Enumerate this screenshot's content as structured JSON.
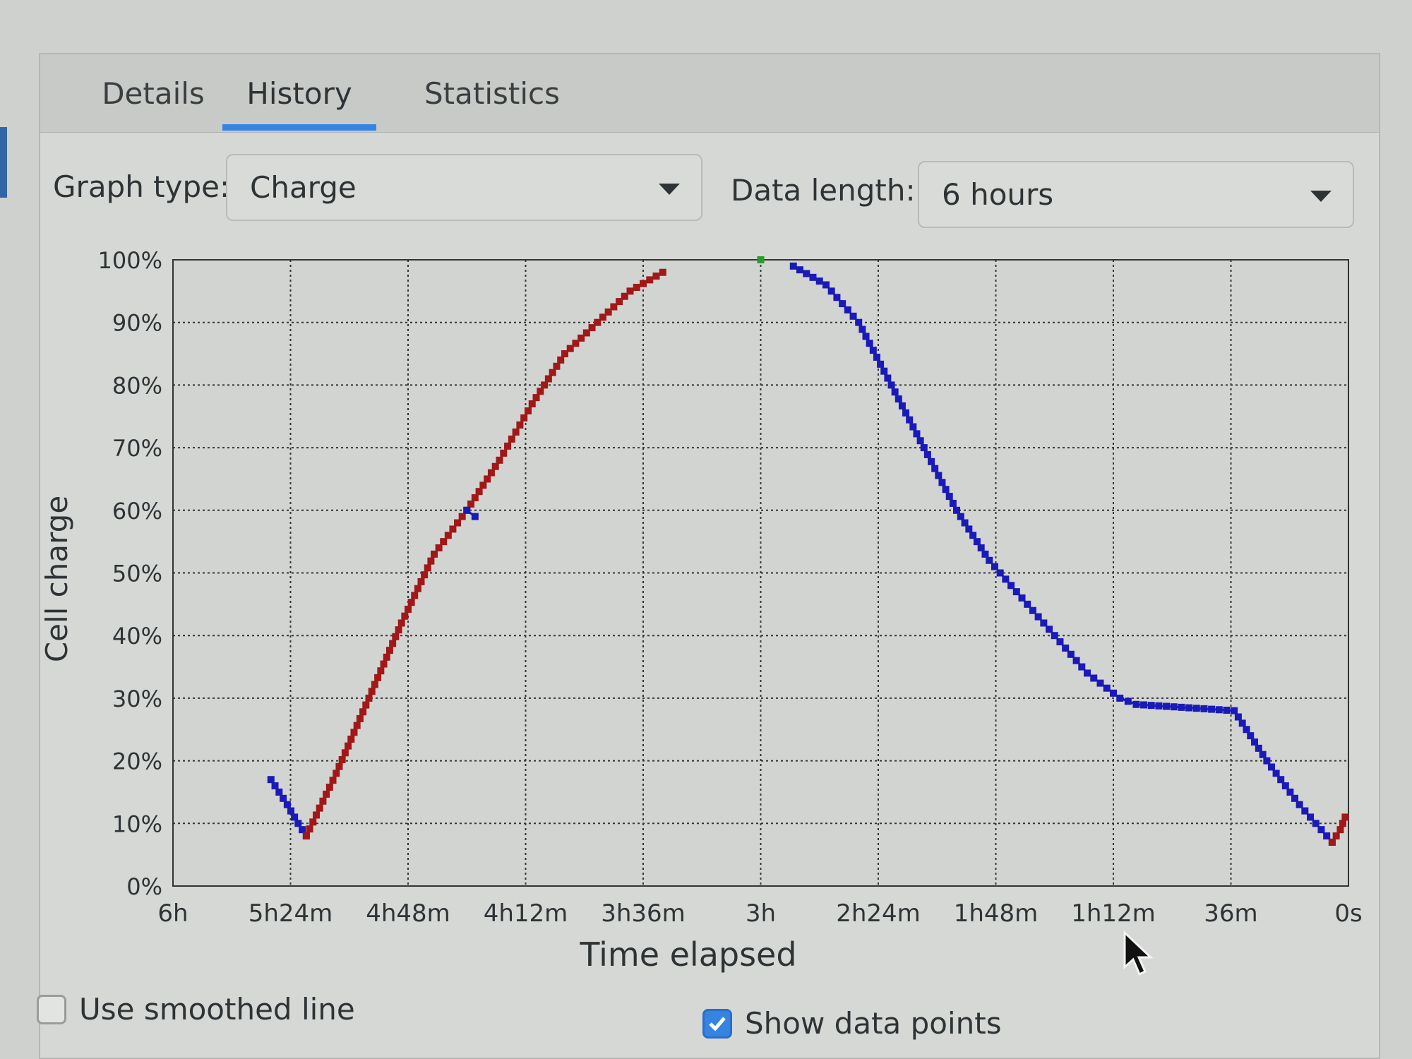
{
  "tabs": [
    {
      "label": "Details",
      "active": false
    },
    {
      "label": "History",
      "active": true
    },
    {
      "label": "Statistics",
      "active": false
    }
  ],
  "controls": {
    "graph_type_label": "Graph type:",
    "graph_type_value": "Charge",
    "data_length_label": "Data length:",
    "data_length_value": "6 hours"
  },
  "options": {
    "smoothed_label": "Use smoothed line",
    "smoothed_checked": false,
    "points_label": "Show data points",
    "points_checked": true
  },
  "colors": {
    "discharging": "#1a1ab8",
    "charging": "#a01818",
    "full": "#2a9a2a",
    "accent": "#3584e4"
  },
  "chart_data": {
    "type": "scatter",
    "xlabel": "Time elapsed",
    "ylabel": "Cell charge",
    "x_unit": "seconds remaining until now",
    "xlim": [
      21600,
      0
    ],
    "ylim": [
      0,
      100
    ],
    "x_tick_labels": [
      "6h",
      "5h24m",
      "4h48m",
      "4h12m",
      "3h36m",
      "3h",
      "2h24m",
      "1h48m",
      "1h12m",
      "36m",
      "0s"
    ],
    "y_tick_labels": [
      "0%",
      "10%",
      "20%",
      "30%",
      "40%",
      "50%",
      "60%",
      "70%",
      "80%",
      "90%",
      "100%"
    ],
    "grid": true,
    "series": [
      {
        "state": "discharging",
        "color": "#1a1ab8",
        "points": [
          [
            19800,
            17
          ],
          [
            19500,
            13
          ],
          [
            19300,
            10
          ],
          [
            19150,
            8
          ]
        ]
      },
      {
        "state": "charging",
        "color": "#a01818",
        "points": [
          [
            19150,
            8
          ],
          [
            18600,
            18
          ],
          [
            18000,
            30
          ],
          [
            17400,
            42
          ],
          [
            16800,
            53
          ],
          [
            16200,
            60
          ],
          [
            15600,
            68
          ],
          [
            15000,
            77
          ],
          [
            14400,
            85
          ],
          [
            13800,
            90
          ],
          [
            13200,
            95
          ],
          [
            12600,
            98
          ]
        ]
      },
      {
        "state": "discharging",
        "color": "#1a1ab8",
        "points": [
          [
            16200,
            60
          ],
          [
            16050,
            59
          ]
        ]
      },
      {
        "state": "full",
        "color": "#2a9a2a",
        "points": [
          [
            10800,
            100
          ]
        ]
      },
      {
        "state": "discharging",
        "color": "#1a1ab8",
        "points": [
          [
            10200,
            99
          ],
          [
            9600,
            96
          ],
          [
            9000,
            90
          ],
          [
            8400,
            80
          ],
          [
            7800,
            70
          ],
          [
            7200,
            60
          ],
          [
            6600,
            52
          ],
          [
            6000,
            46
          ],
          [
            5400,
            40
          ],
          [
            4800,
            34
          ],
          [
            4200,
            30
          ],
          [
            3900,
            29
          ],
          [
            2100,
            28
          ],
          [
            1500,
            20
          ],
          [
            900,
            13
          ],
          [
            300,
            7
          ]
        ]
      },
      {
        "state": "charging",
        "color": "#a01818",
        "points": [
          [
            300,
            7
          ],
          [
            150,
            9
          ],
          [
            60,
            11
          ]
        ]
      }
    ]
  }
}
